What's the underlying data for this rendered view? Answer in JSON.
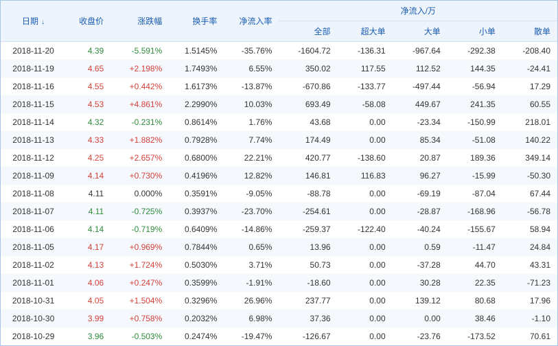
{
  "colors": {
    "header_bg": "#eef4fb",
    "row_alt": "#f5f9fd",
    "border": "#a8c5e8",
    "link": "#1a5db4",
    "up": "#d43f3a",
    "down": "#2e8b3d"
  },
  "header": {
    "date": "日期",
    "close": "收盘价",
    "chg": "涨跌幅",
    "turn": "换手率",
    "inrate": "净流入率",
    "group": "净流入/万",
    "all": "全部",
    "xl": "超大单",
    "lg": "大单",
    "sm": "小单",
    "rt": "散单"
  },
  "rows": [
    {
      "date": "2018-11-20",
      "close": "4.39",
      "close_dir": "dn",
      "chg": "-5.591%",
      "chg_dir": "dn",
      "turn": "1.5145%",
      "inrate": "-35.76%",
      "all": "-1604.72",
      "xl": "-136.31",
      "lg": "-967.64",
      "sm": "-292.38",
      "rt": "-208.40"
    },
    {
      "date": "2018-11-19",
      "close": "4.65",
      "close_dir": "up",
      "chg": "+2.198%",
      "chg_dir": "up",
      "turn": "1.7493%",
      "inrate": "6.55%",
      "all": "350.02",
      "xl": "117.55",
      "lg": "112.52",
      "sm": "144.35",
      "rt": "-24.41"
    },
    {
      "date": "2018-11-16",
      "close": "4.55",
      "close_dir": "up",
      "chg": "+0.442%",
      "chg_dir": "up",
      "turn": "1.6173%",
      "inrate": "-13.87%",
      "all": "-670.86",
      "xl": "-133.77",
      "lg": "-497.44",
      "sm": "-56.94",
      "rt": "17.29"
    },
    {
      "date": "2018-11-15",
      "close": "4.53",
      "close_dir": "up",
      "chg": "+4.861%",
      "chg_dir": "up",
      "turn": "2.2990%",
      "inrate": "10.03%",
      "all": "693.49",
      "xl": "-58.08",
      "lg": "449.67",
      "sm": "241.35",
      "rt": "60.55"
    },
    {
      "date": "2018-11-14",
      "close": "4.32",
      "close_dir": "dn",
      "chg": "-0.231%",
      "chg_dir": "dn",
      "turn": "0.8614%",
      "inrate": "1.76%",
      "all": "43.68",
      "xl": "0.00",
      "lg": "-23.34",
      "sm": "-150.99",
      "rt": "218.01"
    },
    {
      "date": "2018-11-13",
      "close": "4.33",
      "close_dir": "up",
      "chg": "+1.882%",
      "chg_dir": "up",
      "turn": "0.7928%",
      "inrate": "7.74%",
      "all": "174.49",
      "xl": "0.00",
      "lg": "85.34",
      "sm": "-51.08",
      "rt": "140.22"
    },
    {
      "date": "2018-11-12",
      "close": "4.25",
      "close_dir": "up",
      "chg": "+2.657%",
      "chg_dir": "up",
      "turn": "0.6800%",
      "inrate": "22.21%",
      "all": "420.77",
      "xl": "-138.60",
      "lg": "20.87",
      "sm": "189.36",
      "rt": "349.14"
    },
    {
      "date": "2018-11-09",
      "close": "4.14",
      "close_dir": "up",
      "chg": "+0.730%",
      "chg_dir": "up",
      "turn": "0.4196%",
      "inrate": "12.82%",
      "all": "146.81",
      "xl": "116.83",
      "lg": "96.27",
      "sm": "-15.99",
      "rt": "-50.30"
    },
    {
      "date": "2018-11-08",
      "close": "4.11",
      "close_dir": "flat",
      "chg": "0.000%",
      "chg_dir": "flat",
      "turn": "0.3591%",
      "inrate": "-9.05%",
      "all": "-88.78",
      "xl": "0.00",
      "lg": "-69.19",
      "sm": "-87.04",
      "rt": "67.44"
    },
    {
      "date": "2018-11-07",
      "close": "4.11",
      "close_dir": "dn",
      "chg": "-0.725%",
      "chg_dir": "dn",
      "turn": "0.3937%",
      "inrate": "-23.70%",
      "all": "-254.61",
      "xl": "0.00",
      "lg": "-28.87",
      "sm": "-168.96",
      "rt": "-56.78"
    },
    {
      "date": "2018-11-06",
      "close": "4.14",
      "close_dir": "dn",
      "chg": "-0.719%",
      "chg_dir": "dn",
      "turn": "0.6409%",
      "inrate": "-14.86%",
      "all": "-259.37",
      "xl": "-122.40",
      "lg": "-40.24",
      "sm": "-155.67",
      "rt": "58.94"
    },
    {
      "date": "2018-11-05",
      "close": "4.17",
      "close_dir": "up",
      "chg": "+0.969%",
      "chg_dir": "up",
      "turn": "0.7844%",
      "inrate": "0.65%",
      "all": "13.96",
      "xl": "0.00",
      "lg": "0.59",
      "sm": "-11.47",
      "rt": "24.84"
    },
    {
      "date": "2018-11-02",
      "close": "4.13",
      "close_dir": "up",
      "chg": "+1.724%",
      "chg_dir": "up",
      "turn": "0.5030%",
      "inrate": "3.71%",
      "all": "50.73",
      "xl": "0.00",
      "lg": "-37.28",
      "sm": "44.70",
      "rt": "43.31"
    },
    {
      "date": "2018-11-01",
      "close": "4.06",
      "close_dir": "up",
      "chg": "+0.247%",
      "chg_dir": "up",
      "turn": "0.3599%",
      "inrate": "-1.91%",
      "all": "-18.60",
      "xl": "0.00",
      "lg": "30.28",
      "sm": "22.35",
      "rt": "-71.23"
    },
    {
      "date": "2018-10-31",
      "close": "4.05",
      "close_dir": "up",
      "chg": "+1.504%",
      "chg_dir": "up",
      "turn": "0.3296%",
      "inrate": "26.96%",
      "all": "237.77",
      "xl": "0.00",
      "lg": "139.12",
      "sm": "80.68",
      "rt": "17.96"
    },
    {
      "date": "2018-10-30",
      "close": "3.99",
      "close_dir": "up",
      "chg": "+0.758%",
      "chg_dir": "up",
      "turn": "0.2032%",
      "inrate": "6.98%",
      "all": "37.36",
      "xl": "0.00",
      "lg": "0.00",
      "sm": "38.46",
      "rt": "-1.10"
    },
    {
      "date": "2018-10-29",
      "close": "3.96",
      "close_dir": "dn",
      "chg": "-0.503%",
      "chg_dir": "dn",
      "turn": "0.2474%",
      "inrate": "-19.47%",
      "all": "-126.67",
      "xl": "0.00",
      "lg": "-23.76",
      "sm": "-173.52",
      "rt": "70.61"
    }
  ],
  "col_widths": {
    "date": "95",
    "close": "65",
    "chg": "85",
    "turn": "80",
    "inrate": "80",
    "all": "85",
    "xl": "80",
    "lg": "80",
    "sm": "80",
    "rt": "80"
  }
}
